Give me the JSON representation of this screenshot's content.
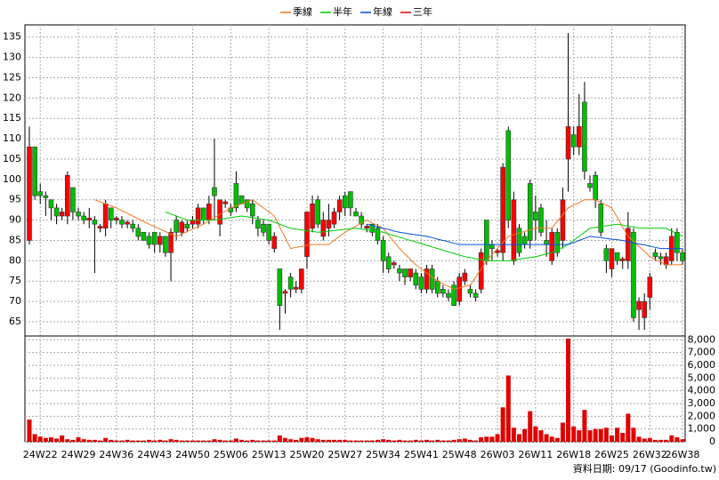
{
  "chart_data": [
    {
      "type": "candlestick",
      "categories": [
        null,
        null,
        "24W22",
        null,
        null,
        null,
        null,
        null,
        null,
        "24W29",
        null,
        null,
        null,
        null,
        null,
        null,
        "24W36",
        null,
        null,
        null,
        null,
        null,
        null,
        "24W43",
        null,
        null,
        null,
        null,
        null,
        null,
        "24W50",
        null,
        null,
        null,
        null,
        null,
        null,
        "25W06",
        null,
        null,
        null,
        null,
        null,
        null,
        "25W13",
        null,
        null,
        null,
        null,
        null,
        null,
        "25W20",
        null,
        null,
        null,
        null,
        null,
        null,
        "25W27",
        null,
        null,
        null,
        null,
        null,
        null,
        "25W34",
        null,
        null,
        null,
        null,
        null,
        null,
        "25W41",
        null,
        null,
        null,
        null,
        null,
        null,
        "25W48",
        null,
        null,
        null,
        null,
        null,
        null,
        "26W03",
        null,
        null,
        null,
        null,
        null,
        null,
        "26W11",
        null,
        null,
        null,
        null,
        null,
        null,
        "26W18",
        null,
        null,
        null,
        null,
        null,
        null,
        "26W25",
        null,
        null,
        null,
        null,
        null,
        null,
        "26W32",
        null,
        null,
        null,
        null,
        null,
        "26W38"
      ],
      "open": [
        85,
        108,
        97,
        96,
        95,
        93,
        91,
        91,
        98,
        92,
        91,
        90,
        90,
        88,
        88,
        93,
        90,
        90,
        89,
        89,
        88,
        87,
        86,
        87,
        84,
        86,
        82,
        90,
        87,
        89,
        89,
        89,
        93,
        90,
        98,
        89,
        94,
        93,
        99,
        96,
        95,
        94,
        90,
        89,
        89,
        83,
        78,
        72,
        76,
        73,
        73,
        81,
        88,
        95,
        86,
        88,
        89,
        92,
        96,
        97,
        92,
        91,
        88,
        89,
        88,
        85,
        81,
        79,
        78,
        78,
        76,
        77,
        76,
        73,
        78,
        75,
        73,
        72,
        74,
        70,
        75,
        73,
        72,
        73,
        90,
        84,
        82,
        82,
        112,
        80,
        88,
        86,
        99,
        92,
        93,
        85,
        80,
        87,
        85,
        105,
        111,
        108,
        119,
        99,
        101,
        94,
        83,
        78,
        82,
        80,
        80,
        87,
        68,
        66,
        71,
        82,
        81,
        79,
        80,
        87,
        82
      ],
      "high": [
        113,
        108,
        99,
        97,
        95,
        94,
        93,
        102,
        98,
        93,
        92,
        93,
        91,
        89,
        95,
        93,
        91,
        91,
        90,
        90,
        89,
        87,
        87,
        87,
        87,
        86,
        88,
        91,
        90,
        90,
        91,
        94,
        93,
        96,
        110,
        95,
        95,
        94,
        102,
        96,
        95,
        95,
        91,
        90,
        89,
        87,
        78,
        73,
        77,
        75,
        78,
        92,
        96,
        96,
        92,
        94,
        93,
        96,
        97,
        97,
        93,
        92,
        89,
        89,
        89,
        86,
        82,
        80,
        79,
        78,
        78,
        78,
        77,
        79,
        79,
        76,
        74,
        73,
        75,
        77,
        78,
        74,
        73,
        83,
        90,
        85,
        83,
        104,
        113,
        97,
        89,
        87,
        100,
        96,
        94,
        90,
        88,
        88,
        98,
        136,
        113,
        121,
        124,
        101,
        102,
        95,
        84,
        83,
        82,
        81,
        92,
        88,
        71,
        72,
        77,
        83,
        82,
        82,
        88,
        88,
        83
      ],
      "low": [
        84,
        95,
        94,
        91,
        90,
        89,
        90,
        89,
        90,
        90,
        89,
        88,
        77,
        87,
        86,
        88,
        89,
        88,
        88,
        87,
        85,
        85,
        83,
        82,
        82,
        81,
        75,
        85,
        86,
        87,
        88,
        88,
        89,
        89,
        90,
        86,
        93,
        91,
        92,
        94,
        92,
        89,
        86,
        86,
        84,
        82,
        63,
        67,
        71,
        72,
        72,
        78,
        87,
        88,
        85,
        86,
        88,
        90,
        91,
        91,
        91,
        88,
        87,
        86,
        84,
        77,
        77,
        78,
        75,
        74,
        75,
        73,
        72,
        72,
        72,
        71,
        71,
        70,
        69,
        69,
        74,
        71,
        70,
        72,
        79,
        80,
        81,
        80,
        88,
        79,
        81,
        83,
        83,
        85,
        86,
        81,
        79,
        81,
        83,
        97,
        106,
        106,
        100,
        97,
        93,
        86,
        77,
        76,
        79,
        78,
        78,
        65,
        63,
        63,
        68,
        80,
        79,
        78,
        79,
        80,
        79
      ],
      "close": [
        108,
        96,
        96,
        95.5,
        93,
        91,
        92,
        101,
        92,
        91,
        90,
        90.5,
        89,
        88.5,
        94,
        90,
        90.5,
        89,
        89.5,
        88,
        86,
        85,
        84,
        84,
        86,
        82,
        87,
        87,
        89.5,
        88,
        90,
        93,
        90,
        94,
        96,
        95,
        94.5,
        92,
        93,
        94,
        93,
        91,
        88,
        87,
        85,
        86,
        69,
        72.5,
        73,
        73.5,
        78,
        92,
        94,
        89,
        90,
        90,
        92,
        95,
        93,
        93,
        91,
        89,
        88.5,
        87,
        85,
        80,
        78,
        79.5,
        77,
        76,
        78,
        74,
        73,
        78,
        73,
        72,
        72,
        71,
        69,
        76,
        77,
        72,
        71,
        82,
        80,
        83,
        82.5,
        103,
        90,
        95,
        82,
        84,
        85,
        90,
        87,
        84,
        87,
        82,
        95,
        113,
        108,
        113,
        102,
        98,
        95,
        87,
        80,
        83,
        80,
        80.5,
        88,
        66,
        70,
        70,
        76,
        81,
        80.5,
        81,
        86,
        82,
        80
      ],
      "up_color": "#ff0000",
      "down_color": "#00c000",
      "series": [
        {
          "name": "季線",
          "color": "#f07820",
          "values": [
            null,
            null,
            null,
            null,
            null,
            null,
            null,
            null,
            null,
            null,
            null,
            null,
            95,
            94.5,
            94,
            93.5,
            93,
            92.3,
            91.7,
            91,
            90.3,
            89.7,
            89,
            88.4,
            87.8,
            87.2,
            86.6,
            86,
            86.6,
            87.2,
            87.8,
            88.4,
            89,
            89.8,
            90.6,
            91.4,
            92.2,
            93,
            93.5,
            94,
            94.5,
            95,
            94,
            93,
            92,
            91,
            88.3,
            85.7,
            83,
            83.3,
            83.5,
            83.8,
            84,
            84,
            84,
            84,
            85,
            86,
            87,
            87.8,
            88.5,
            89.3,
            90,
            89.3,
            88.7,
            88,
            86.3,
            84.7,
            83,
            81.7,
            80.3,
            79,
            78,
            77,
            76,
            75,
            74.3,
            73.7,
            73,
            73.3,
            73.7,
            74,
            76,
            78,
            80,
            81.5,
            83,
            84.5,
            86,
            86.4,
            86.8,
            87.2,
            87.6,
            88,
            88,
            88,
            88,
            89.7,
            91.3,
            93,
            93.7,
            94.3,
            95,
            95,
            95,
            94.3,
            93.7,
            93,
            90.7,
            88.3,
            86,
            84.8,
            83.5,
            82.3,
            81,
            80.3,
            79.7,
            79,
            79,
            79,
            79
          ]
        },
        {
          "name": "半年",
          "color": "#00cc00",
          "values": [
            null,
            null,
            null,
            null,
            null,
            null,
            null,
            null,
            null,
            null,
            null,
            null,
            null,
            null,
            null,
            null,
            null,
            null,
            null,
            null,
            null,
            null,
            null,
            null,
            null,
            92,
            91.5,
            91,
            90.5,
            90,
            90,
            90,
            90,
            90,
            90,
            90.2,
            90.4,
            90.6,
            90.8,
            91,
            90.8,
            90.6,
            90.4,
            90.2,
            90,
            89.5,
            89,
            88.5,
            88,
            87.8,
            87.6,
            87.4,
            87.2,
            87,
            87.1,
            87.3,
            87.4,
            87.6,
            87.7,
            87.9,
            88,
            87.8,
            87.6,
            87.4,
            87.2,
            87,
            86.6,
            86.2,
            85.8,
            85.4,
            85,
            84.6,
            84.2,
            83.8,
            83.4,
            83,
            82.6,
            82.2,
            81.8,
            81.4,
            81,
            80.8,
            80.5,
            80.3,
            80,
            80,
            80,
            80,
            80,
            80.2,
            80.4,
            80.6,
            80.8,
            81,
            81.3,
            81.7,
            82,
            82.7,
            83.3,
            84,
            85,
            86,
            87,
            88,
            88.2,
            88.4,
            88.6,
            88.8,
            89,
            88.8,
            88.5,
            88.3,
            88,
            88,
            88,
            88,
            88,
            88,
            87.3,
            86.7,
            86
          ]
        },
        {
          "name": "年線",
          "color": "#0050e0",
          "values": [
            null,
            null,
            null,
            null,
            null,
            null,
            null,
            null,
            null,
            null,
            null,
            null,
            null,
            null,
            null,
            null,
            null,
            null,
            null,
            null,
            null,
            null,
            null,
            null,
            null,
            null,
            null,
            null,
            null,
            null,
            null,
            null,
            null,
            null,
            null,
            null,
            null,
            null,
            null,
            null,
            null,
            null,
            null,
            null,
            null,
            null,
            null,
            null,
            null,
            null,
            null,
            null,
            null,
            null,
            null,
            null,
            null,
            null,
            null,
            null,
            null,
            null,
            89,
            88.7,
            88.3,
            88,
            87.7,
            87.3,
            87,
            86.8,
            86.6,
            86.4,
            86.2,
            86,
            85.7,
            85.3,
            85,
            84.7,
            84.3,
            84,
            84,
            84,
            84,
            84,
            84,
            84,
            84,
            84,
            84,
            84,
            84,
            84,
            84,
            84,
            84,
            84,
            84,
            84,
            84,
            84,
            84.5,
            85,
            85.5,
            86,
            85.8,
            85.7,
            85.5,
            85.3,
            85.2,
            85,
            84.7,
            84.4,
            84.1,
            83.9,
            83.6,
            83.3,
            83,
            83,
            83,
            83,
            83
          ]
        },
        {
          "name": "三年",
          "color": "#e00000",
          "values": [
            null,
            null,
            null,
            null,
            null,
            null,
            null,
            null,
            null,
            null,
            null,
            null,
            null,
            null,
            null,
            null,
            null,
            null,
            null,
            null,
            null,
            null,
            null,
            null,
            null,
            null,
            null,
            null,
            null,
            null,
            null,
            null,
            null,
            null,
            null,
            null,
            null,
            null,
            null,
            null,
            null,
            null,
            null,
            null,
            null,
            null,
            null,
            null,
            null,
            null,
            null,
            null,
            null,
            null,
            null,
            null,
            null,
            null,
            null,
            null,
            null,
            null,
            null,
            null,
            null,
            null,
            null,
            null,
            null,
            null,
            null,
            null,
            null,
            null,
            null,
            null,
            null,
            null,
            null,
            null,
            null,
            null,
            null,
            null,
            null,
            null,
            null,
            null,
            null,
            null,
            null,
            null,
            null,
            null,
            null,
            null,
            null,
            null,
            null,
            null,
            null,
            null,
            null,
            null,
            null,
            null,
            null,
            null,
            null,
            null,
            null,
            null,
            null,
            null,
            null,
            null,
            null,
            null,
            null,
            null,
            null
          ]
        }
      ],
      "ylim": [
        61.5,
        138
      ],
      "yticks": [
        65,
        70,
        75,
        80,
        85,
        90,
        95,
        100,
        105,
        110,
        115,
        120,
        125,
        130,
        135
      ],
      "grid": true
    },
    {
      "type": "bar",
      "color": "#e00000",
      "values": [
        1750,
        600,
        400,
        300,
        350,
        250,
        500,
        200,
        150,
        350,
        200,
        150,
        150,
        100,
        300,
        150,
        100,
        100,
        150,
        100,
        100,
        100,
        150,
        100,
        150,
        100,
        200,
        150,
        100,
        100,
        100,
        100,
        100,
        100,
        200,
        150,
        100,
        100,
        250,
        150,
        100,
        150,
        100,
        100,
        100,
        100,
        500,
        300,
        200,
        150,
        300,
        350,
        300,
        200,
        150,
        150,
        150,
        150,
        150,
        100,
        100,
        100,
        100,
        100,
        150,
        200,
        150,
        100,
        150,
        100,
        100,
        150,
        100,
        150,
        100,
        150,
        100,
        100,
        150,
        200,
        250,
        150,
        100,
        350,
        400,
        400,
        600,
        2700,
        5200,
        1100,
        600,
        1000,
        2400,
        1200,
        900,
        600,
        400,
        300,
        1500,
        8100,
        1200,
        900,
        2500,
        900,
        1000,
        1000,
        1100,
        500,
        1100,
        700,
        2200,
        1100,
        400,
        250,
        300,
        150,
        150,
        150,
        500,
        350,
        200
      ],
      "ylim": [
        0,
        8300
      ],
      "yticks": [
        0,
        {
          "value": 1000,
          "label": "1,000"
        },
        {
          "value": 2000,
          "label": "2,000"
        },
        {
          "value": 3000,
          "label": "3,000"
        },
        {
          "value": 4000,
          "label": "4,000"
        },
        {
          "value": 5000,
          "label": "5,000"
        },
        {
          "value": 6000,
          "label": "6,000"
        },
        {
          "value": 7000,
          "label": "7,000"
        },
        {
          "value": 8000,
          "label": "8,000"
        }
      ],
      "grid": true
    }
  ],
  "footer": "資料日期: 09/17  (Goodinfo.tw)"
}
